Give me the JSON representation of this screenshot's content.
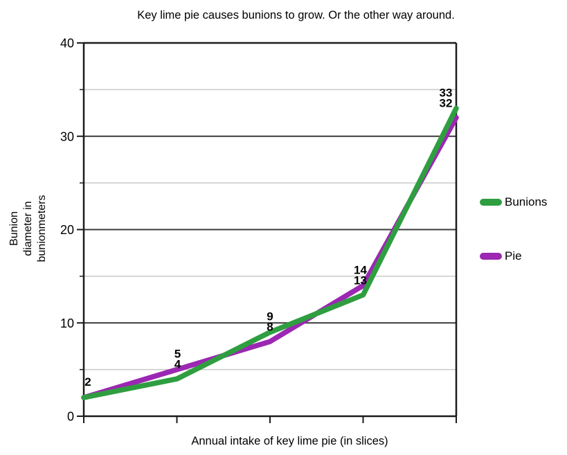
{
  "chart_data": {
    "type": "line",
    "title": "Key lime pie causes bunions to grow. Or the other way around.",
    "xlabel": "Annual intake of key lime pie (in slices)",
    "ylabel": "Bunion\ndiameter in\nbunionmeters",
    "y_axis": {
      "min": 0,
      "max": 40,
      "major_step": 10,
      "minor_step": 5,
      "tick_labels": [
        "0",
        "10",
        "20",
        "30",
        "40"
      ]
    },
    "x_tick_labels": [
      "",
      "",
      "",
      "",
      ""
    ],
    "series": [
      {
        "name": "Bunions",
        "color": "#2f9e40",
        "values": [
          2,
          4,
          9,
          13,
          33
        ]
      },
      {
        "name": "Pie",
        "color": "#9b27b2",
        "values": [
          2,
          5,
          8,
          14,
          32
        ]
      }
    ],
    "point_labels": [
      [
        "2"
      ],
      [
        "5",
        "4"
      ],
      [
        "9",
        "8"
      ],
      [
        "14",
        "13"
      ],
      [
        "33",
        "32"
      ]
    ],
    "grid": {
      "show": true,
      "major_color": "#3a3a3a",
      "minor_color": "#c9c9c9",
      "axis_color": "#1b1b1b"
    },
    "legend_position": "right"
  }
}
